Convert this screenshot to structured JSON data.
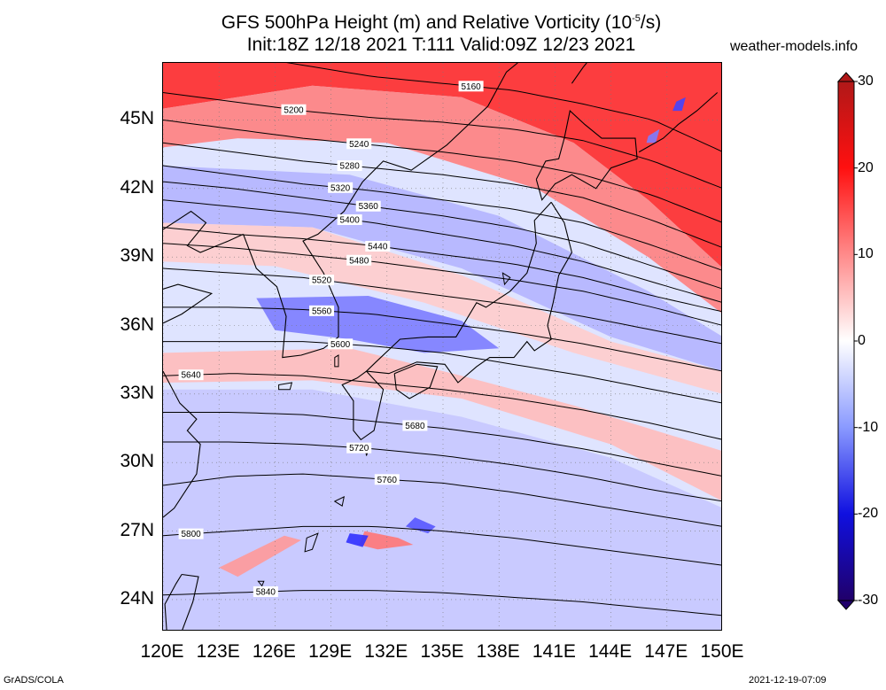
{
  "title": {
    "line1_pre": "GFS 500hPa Height (m) and Relative Vorticity (10",
    "line1_sup": "-5",
    "line1_post": "/s)",
    "line2": "Init:18Z 12/18 2021 T:111 Valid:09Z 12/23 2021"
  },
  "site": "weather-models.info",
  "footer": {
    "left": "GrADS/COLA",
    "right": "2021-12-19-07:09"
  },
  "axes": {
    "lat_labels": [
      "45N",
      "42N",
      "39N",
      "36N",
      "33N",
      "30N",
      "27N",
      "24N"
    ],
    "lat_values": [
      45,
      42,
      39,
      36,
      33,
      30,
      27,
      24
    ],
    "lon_labels": [
      "120E",
      "123E",
      "126E",
      "129E",
      "132E",
      "135E",
      "138E",
      "141E",
      "144E",
      "147E",
      "150E"
    ],
    "lon_values": [
      120,
      123,
      126,
      129,
      132,
      135,
      138,
      141,
      144,
      147,
      150
    ],
    "lat_range": [
      22.6,
      47.5
    ],
    "lon_range": [
      120,
      150
    ]
  },
  "colorbar": {
    "labels": [
      "30",
      "20",
      "10",
      "0",
      "-10",
      "-20",
      "-30"
    ],
    "values": [
      30,
      20,
      10,
      0,
      -10,
      -20,
      -30
    ],
    "colors": [
      "#b01818",
      "#ff0000",
      "#ff8a8a",
      "#ffffff",
      "#8a9aff",
      "#1010e0",
      "#20006a"
    ]
  },
  "contours": [
    {
      "label": "5160",
      "lat": [
        48.3,
        47.9,
        47.4,
        46.9,
        46.6,
        46.3,
        45.7,
        45.0,
        43.6
      ],
      "label_lon": 136.5
    },
    {
      "label": "5200",
      "lat": [
        46.2,
        45.8,
        45.4,
        45.1,
        44.9,
        44.6,
        44.1,
        43.2,
        42.0
      ],
      "label_lon": 127.0
    },
    {
      "label": "5240",
      "lat": [
        45.0,
        44.6,
        44.2,
        43.9,
        43.6,
        43.2,
        42.6,
        41.7,
        40.5
      ],
      "label_lon": 130.5
    },
    {
      "label": "5280",
      "lat": [
        44.0,
        43.6,
        43.2,
        42.9,
        42.6,
        42.2,
        41.6,
        40.6,
        39.4
      ],
      "label_lon": 130.0
    },
    {
      "label": "5320",
      "lat": [
        43.0,
        42.6,
        42.2,
        41.9,
        41.5,
        41.1,
        40.5,
        39.5,
        38.4
      ],
      "label_lon": 129.5
    },
    {
      "label": "5360",
      "lat": [
        42.3,
        42.0,
        41.6,
        41.2,
        40.8,
        40.3,
        39.6,
        38.6,
        37.6
      ],
      "label_lon": 131.0
    },
    {
      "label": "5400",
      "lat": [
        41.5,
        41.2,
        40.9,
        40.5,
        40.0,
        39.5,
        38.8,
        37.9,
        37.0
      ],
      "label_lon": 130.0
    },
    {
      "label": "5440",
      "lat": [
        40.3,
        40.0,
        39.8,
        39.5,
        39.1,
        38.7,
        38.1,
        37.3,
        36.6
      ],
      "label_lon": 131.5
    },
    {
      "label": "5480",
      "lat": [
        39.6,
        39.4,
        39.1,
        38.8,
        38.4,
        38.0,
        37.5,
        36.8,
        36.0
      ],
      "label_lon": 130.5
    },
    {
      "label": "5520",
      "lat": [
        38.5,
        38.3,
        38.1,
        37.7,
        37.3,
        36.9,
        36.4,
        35.8,
        35.2
      ],
      "label_lon": 128.5
    },
    {
      "label": "5560",
      "lat": [
        36.8,
        36.8,
        36.7,
        36.5,
        36.1,
        35.7,
        35.2,
        34.6,
        34.0
      ],
      "label_lon": 128.5
    },
    {
      "label": "5600",
      "lat": [
        35.3,
        35.3,
        35.3,
        35.1,
        34.8,
        34.3,
        33.8,
        33.2,
        32.6
      ],
      "label_lon": 129.5
    },
    {
      "label": "5640",
      "lat": [
        33.8,
        33.9,
        33.8,
        33.5,
        33.2,
        32.8,
        32.3,
        31.7,
        31.0
      ],
      "label_lon": 121.5
    },
    {
      "label": "5680",
      "lat": [
        32.2,
        32.2,
        32.1,
        31.8,
        31.5,
        31.1,
        30.6,
        30.0,
        29.4
      ],
      "label_lon": 133.5
    },
    {
      "label": "5720",
      "lat": [
        30.9,
        30.9,
        30.8,
        30.6,
        30.3,
        29.9,
        29.4,
        28.8,
        28.3
      ],
      "label_lon": 130.5
    },
    {
      "label": "5760",
      "lat": [
        29.0,
        29.4,
        29.5,
        29.3,
        29.1,
        28.7,
        28.2,
        27.7,
        27.2
      ],
      "label_lon": 132.0
    },
    {
      "label": "5800",
      "lat": [
        26.8,
        27.0,
        27.2,
        27.2,
        27.0,
        26.7,
        26.3,
        25.9,
        25.5
      ],
      "label_lon": 121.5
    },
    {
      "label": "5840",
      "lat": [
        24.2,
        24.3,
        24.4,
        24.4,
        24.3,
        24.1,
        23.9,
        23.6,
        23.3
      ],
      "label_lon": 125.5
    }
  ],
  "vorticity_bands": [
    {
      "value": 25,
      "pts": [
        [
          120,
          47.5
        ],
        [
          150,
          47.5
        ],
        [
          150,
          38.5
        ],
        [
          146,
          41.5
        ],
        [
          142,
          44
        ],
        [
          136,
          46
        ],
        [
          128,
          46.5
        ],
        [
          120,
          45.5
        ]
      ]
    },
    {
      "value": 15,
      "pts": [
        [
          120,
          45.5
        ],
        [
          128,
          46.5
        ],
        [
          136,
          46
        ],
        [
          142,
          44
        ],
        [
          146,
          41.5
        ],
        [
          150,
          38.5
        ],
        [
          150,
          36.5
        ],
        [
          146,
          39
        ],
        [
          140,
          42
        ],
        [
          132,
          44
        ],
        [
          124,
          44.2
        ],
        [
          120,
          43.8
        ]
      ]
    },
    {
      "value": -8,
      "pts": [
        [
          120,
          43
        ],
        [
          130,
          42.6
        ],
        [
          138,
          40.8
        ],
        [
          146,
          37.5
        ],
        [
          150,
          35.5
        ],
        [
          150,
          34
        ],
        [
          144,
          35.5
        ],
        [
          136,
          38.5
        ],
        [
          128,
          40.3
        ],
        [
          120,
          40.5
        ]
      ]
    },
    {
      "value": 6,
      "pts": [
        [
          120,
          40.5
        ],
        [
          128,
          40.3
        ],
        [
          136,
          38.2
        ],
        [
          144,
          35.3
        ],
        [
          150,
          34
        ],
        [
          150,
          33
        ],
        [
          142,
          34.8
        ],
        [
          134,
          37
        ],
        [
          126,
          38.6
        ],
        [
          120,
          38.8
        ]
      ]
    },
    {
      "value": -14,
      "pts": [
        [
          125,
          37.2
        ],
        [
          131,
          37.3
        ],
        [
          136,
          36.2
        ],
        [
          138,
          35
        ],
        [
          134,
          34.8
        ],
        [
          130,
          35.4
        ],
        [
          126,
          35.8
        ]
      ]
    },
    {
      "value": 8,
      "pts": [
        [
          120,
          34.8
        ],
        [
          130,
          35.0
        ],
        [
          136,
          33.8
        ],
        [
          142,
          32.5
        ],
        [
          150,
          30.5
        ],
        [
          150,
          28.3
        ],
        [
          144,
          30.8
        ],
        [
          136,
          32.8
        ],
        [
          128,
          33.6
        ],
        [
          120,
          33.5
        ]
      ]
    },
    {
      "value": -6,
      "pts": [
        [
          120,
          33.2
        ],
        [
          128,
          33.2
        ],
        [
          136,
          32.0
        ],
        [
          144,
          30.2
        ],
        [
          150,
          28.0
        ],
        [
          150,
          22.6
        ],
        [
          120,
          22.6
        ]
      ]
    },
    {
      "value": -18,
      "pts": [
        [
          133.5,
          27.6
        ],
        [
          134.6,
          27.2
        ],
        [
          134.2,
          26.9
        ],
        [
          133.0,
          27.2
        ]
      ]
    },
    {
      "value": 16,
      "pts": [
        [
          130.8,
          27.0
        ],
        [
          132.6,
          26.7
        ],
        [
          133.4,
          26.4
        ],
        [
          131.5,
          26.2
        ],
        [
          130.5,
          26.4
        ]
      ]
    },
    {
      "value": -22,
      "pts": [
        [
          130.0,
          26.9
        ],
        [
          131.0,
          26.8
        ],
        [
          130.7,
          26.3
        ],
        [
          129.8,
          26.5
        ]
      ]
    },
    {
      "value": 12,
      "pts": [
        [
          123.0,
          25.4
        ],
        [
          126.5,
          26.8
        ],
        [
          127.4,
          26.6
        ],
        [
          124.0,
          25.0
        ]
      ]
    },
    {
      "value": -20,
      "pts": [
        [
          147.5,
          45.8
        ],
        [
          148.0,
          46.0
        ],
        [
          147.8,
          45.4
        ],
        [
          147.3,
          45.4
        ]
      ]
    },
    {
      "value": -14,
      "pts": [
        [
          146.0,
          44.3
        ],
        [
          146.6,
          44.6
        ],
        [
          146.4,
          44.0
        ],
        [
          145.9,
          44.0
        ]
      ]
    }
  ],
  "coastlines": [
    {
      "name": "japan-hokkaido",
      "pts": [
        [
          140.0,
          42.4
        ],
        [
          140.5,
          43.2
        ],
        [
          141.2,
          43.3
        ],
        [
          141.5,
          44.2
        ],
        [
          141.8,
          45.4
        ],
        [
          142.6,
          44.8
        ],
        [
          143.5,
          44.2
        ],
        [
          145.3,
          44.2
        ],
        [
          145.4,
          43.3
        ],
        [
          144.0,
          42.9
        ],
        [
          143.2,
          42.0
        ],
        [
          141.9,
          42.6
        ],
        [
          141.0,
          42.2
        ],
        [
          140.3,
          41.5
        ],
        [
          140.0,
          42.4
        ]
      ]
    },
    {
      "name": "japan-honshu",
      "pts": [
        [
          140.8,
          41.4
        ],
        [
          141.5,
          40.5
        ],
        [
          141.9,
          39.2
        ],
        [
          141.2,
          38.2
        ],
        [
          140.9,
          37.0
        ],
        [
          140.6,
          36.0
        ],
        [
          140.8,
          35.4
        ],
        [
          139.9,
          34.9
        ],
        [
          139.5,
          35.3
        ],
        [
          138.8,
          34.6
        ],
        [
          137.5,
          34.6
        ],
        [
          136.8,
          34.2
        ],
        [
          135.8,
          33.5
        ],
        [
          135.1,
          34.3
        ],
        [
          133.6,
          34.4
        ],
        [
          132.1,
          33.9
        ],
        [
          130.9,
          34.0
        ],
        [
          131.4,
          34.4
        ],
        [
          132.7,
          35.4
        ],
        [
          134.2,
          35.5
        ],
        [
          135.7,
          35.5
        ],
        [
          136.8,
          37.0
        ],
        [
          137.3,
          36.8
        ],
        [
          138.6,
          37.5
        ],
        [
          139.5,
          38.3
        ],
        [
          140.0,
          39.6
        ],
        [
          139.9,
          40.6
        ],
        [
          140.8,
          41.4
        ]
      ]
    },
    {
      "name": "japan-kyushu",
      "pts": [
        [
          130.9,
          34.0
        ],
        [
          131.8,
          33.2
        ],
        [
          131.3,
          31.4
        ],
        [
          130.6,
          31.0
        ],
        [
          130.2,
          31.4
        ],
        [
          130.2,
          32.7
        ],
        [
          129.6,
          33.4
        ],
        [
          130.4,
          33.7
        ],
        [
          130.9,
          34.0
        ]
      ]
    },
    {
      "name": "japan-shikoku",
      "pts": [
        [
          132.4,
          33.9
        ],
        [
          133.6,
          34.3
        ],
        [
          134.7,
          34.2
        ],
        [
          134.3,
          33.3
        ],
        [
          133.2,
          32.8
        ],
        [
          132.5,
          33.2
        ],
        [
          132.4,
          33.9
        ]
      ]
    },
    {
      "name": "korea",
      "pts": [
        [
          124.3,
          40.0
        ],
        [
          125.0,
          38.5
        ],
        [
          126.1,
          37.7
        ],
        [
          126.6,
          36.4
        ],
        [
          126.4,
          34.6
        ],
        [
          127.4,
          34.7
        ],
        [
          128.6,
          35.0
        ],
        [
          129.4,
          35.5
        ],
        [
          129.4,
          36.8
        ],
        [
          128.6,
          38.3
        ],
        [
          127.5,
          39.7
        ],
        [
          128.3,
          40.0
        ],
        [
          129.7,
          41.0
        ],
        [
          130.7,
          42.3
        ]
      ]
    },
    {
      "name": "china-coast",
      "pts": [
        [
          120.0,
          40.2
        ],
        [
          121.5,
          41.0
        ],
        [
          122.3,
          40.5
        ],
        [
          121.3,
          39.5
        ],
        [
          122.0,
          39.2
        ],
        [
          123.5,
          39.7
        ],
        [
          124.3,
          40.0
        ]
      ]
    },
    {
      "name": "shandong",
      "pts": [
        [
          120.0,
          37.6
        ],
        [
          120.8,
          37.8
        ],
        [
          122.6,
          37.4
        ],
        [
          121.0,
          36.5
        ],
        [
          120.0,
          36.1
        ]
      ]
    },
    {
      "name": "russia-coast",
      "pts": [
        [
          130.7,
          42.3
        ],
        [
          131.8,
          43.2
        ],
        [
          133.3,
          42.8
        ],
        [
          135.2,
          43.9
        ],
        [
          137.4,
          45.6
        ],
        [
          138.4,
          47.1
        ],
        [
          139.0,
          47.5
        ]
      ]
    },
    {
      "name": "sakhalin",
      "pts": [
        [
          141.9,
          46.6
        ],
        [
          142.5,
          47.3
        ],
        [
          142.7,
          47.5
        ]
      ]
    },
    {
      "name": "taiwan",
      "pts": [
        [
          121.0,
          25.1
        ],
        [
          121.9,
          25.0
        ],
        [
          121.6,
          23.9
        ],
        [
          121.0,
          22.6
        ],
        [
          120.2,
          22.6
        ],
        [
          120.1,
          23.8
        ],
        [
          120.7,
          24.7
        ],
        [
          121.0,
          25.1
        ]
      ]
    },
    {
      "name": "china-se",
      "pts": [
        [
          120.0,
          27.6
        ],
        [
          120.6,
          28.0
        ],
        [
          121.8,
          29.5
        ],
        [
          122.0,
          30.8
        ],
        [
          121.3,
          31.4
        ],
        [
          121.8,
          31.9
        ],
        [
          120.9,
          32.6
        ],
        [
          120.0,
          34.0
        ]
      ]
    },
    {
      "name": "kuril",
      "pts": [
        [
          145.5,
          43.6
        ],
        [
          146.8,
          44.2
        ],
        [
          147.6,
          44.8
        ],
        [
          148.6,
          45.4
        ],
        [
          149.7,
          46.2
        ]
      ]
    }
  ],
  "islands": [
    {
      "name": "okinawa",
      "pts": [
        [
          127.7,
          26.7
        ],
        [
          128.3,
          26.9
        ],
        [
          128.0,
          26.2
        ],
        [
          127.6,
          26.1
        ]
      ]
    },
    {
      "name": "jeju",
      "pts": [
        [
          126.2,
          33.4
        ],
        [
          126.9,
          33.5
        ],
        [
          126.8,
          33.2
        ],
        [
          126.2,
          33.2
        ]
      ]
    },
    {
      "name": "tsushima",
      "pts": [
        [
          129.2,
          34.6
        ],
        [
          129.4,
          34.7
        ],
        [
          129.4,
          34.2
        ],
        [
          129.2,
          34.2
        ]
      ]
    },
    {
      "name": "amami",
      "pts": [
        [
          129.2,
          28.3
        ],
        [
          129.7,
          28.5
        ],
        [
          129.6,
          28.1
        ]
      ]
    },
    {
      "name": "tanegashima",
      "pts": [
        [
          130.8,
          30.8
        ],
        [
          131.1,
          30.8
        ],
        [
          130.9,
          30.3
        ]
      ]
    },
    {
      "name": "sado",
      "pts": [
        [
          138.2,
          38.3
        ],
        [
          138.6,
          38.1
        ],
        [
          138.3,
          37.8
        ]
      ]
    },
    {
      "name": "miyako",
      "pts": [
        [
          125.1,
          24.8
        ],
        [
          125.4,
          24.8
        ],
        [
          125.3,
          24.6
        ]
      ]
    }
  ]
}
